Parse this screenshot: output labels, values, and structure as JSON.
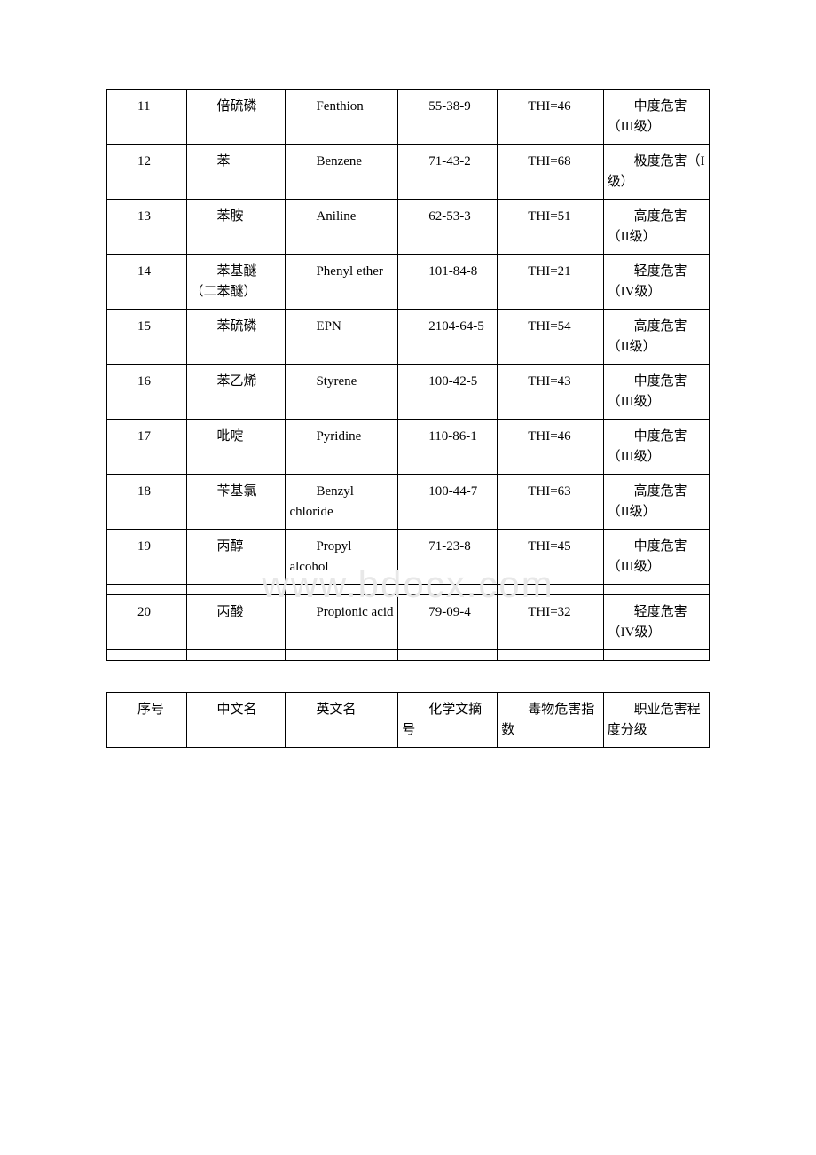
{
  "watermark": "www.bdocx.com",
  "table1": {
    "rows": [
      {
        "seq": "11",
        "cn": "倍硫磷",
        "en": "Fenthion",
        "cas": "55-38-9",
        "thi": "THI=46",
        "grade": "中度危害（III级）"
      },
      {
        "seq": "12",
        "cn": "苯",
        "en": "Benzene",
        "cas": "71-43-2",
        "thi": "THI=68",
        "grade": "极度危害（I 级）"
      },
      {
        "seq": "13",
        "cn": "苯胺",
        "en": "Aniline",
        "cas": "62-53-3",
        "thi": "THI=51",
        "grade": "高度危害（II级）"
      },
      {
        "seq": "14",
        "cn": "苯基醚（二苯醚）",
        "en": "Phenyl ether",
        "cas": "101-84-8",
        "thi": "THI=21",
        "grade": "轻度危害（IV级）"
      },
      {
        "seq": "15",
        "cn": "苯硫磷",
        "en": "EPN",
        "cas": "2104-64-5",
        "thi": "THI=54",
        "grade": "高度危害（II级）"
      },
      {
        "seq": "16",
        "cn": "苯乙烯",
        "en": "Styrene",
        "cas": "100-42-5",
        "thi": "THI=43",
        "grade": "中度危害（III级）"
      },
      {
        "seq": "17",
        "cn": "吡啶",
        "en": "Pyridine",
        "cas": "110-86-1",
        "thi": "THI=46",
        "grade": "中度危害（III级）"
      },
      {
        "seq": "18",
        "cn": "苄基氯",
        "en": "Benzyl chloride",
        "cas": "100-44-7",
        "thi": "THI=63",
        "grade": "高度危害（II级）"
      },
      {
        "seq": "19",
        "cn": "丙醇",
        "en": "Propyl alcohol",
        "cas": "71-23-8",
        "thi": "THI=45",
        "grade": "中度危害（III级）"
      },
      {
        "seq": "20",
        "cn": "丙酸",
        "en": "Propionic acid",
        "cas": "79-09-4",
        "thi": "THI=32",
        "grade": "轻度危害（IV级）"
      }
    ]
  },
  "table2": {
    "header": {
      "h1": "序号",
      "h2": "中文名",
      "h3": "英文名",
      "h4": "化学文摘号",
      "h5": "毒物危害指数",
      "h6": "职业危害程度分级"
    }
  }
}
